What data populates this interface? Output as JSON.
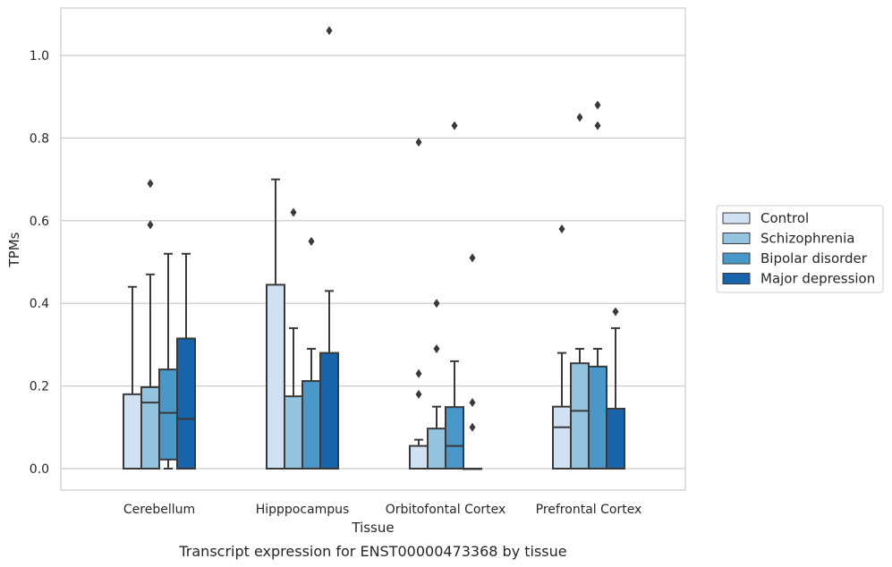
{
  "caption": "Transcript expression for ENST00000473368 by tissue",
  "chart_data": {
    "type": "box",
    "xlabel": "Tissue",
    "ylabel": "TPMs",
    "ylim": [
      -0.05,
      1.12
    ],
    "yticks": [
      0.0,
      0.2,
      0.4,
      0.6,
      0.8,
      1.0
    ],
    "ytick_labels": [
      "0.0",
      "0.2",
      "0.4",
      "0.6",
      "0.8",
      "1.0"
    ],
    "grid": "horizontal",
    "legend_position": "right",
    "categories": [
      "Cerebellum",
      "Hipppocampus",
      "Orbitofontal Cortex",
      "Prefrontal Cortex"
    ],
    "series": [
      {
        "name": "Control",
        "color": "#d0e1f2",
        "boxes": [
          {
            "whislo": 0.0,
            "q1": 0.0,
            "med": 0.0,
            "q3": 0.18,
            "whishi": 0.44,
            "fliers": []
          },
          {
            "whislo": 0.0,
            "q1": 0.0,
            "med": 0.0,
            "q3": 0.445,
            "whishi": 0.7,
            "fliers": []
          },
          {
            "whislo": 0.0,
            "q1": 0.0,
            "med": 0.0,
            "q3": 0.055,
            "whishi": 0.07,
            "fliers": [
              0.18,
              0.23,
              0.79
            ]
          },
          {
            "whislo": 0.0,
            "q1": 0.0,
            "med": 0.1,
            "q3": 0.15,
            "whishi": 0.28,
            "fliers": [
              0.58
            ]
          }
        ]
      },
      {
        "name": "Schizophrenia",
        "color": "#94c4df",
        "boxes": [
          {
            "whislo": 0.0,
            "q1": 0.0,
            "med": 0.16,
            "q3": 0.197,
            "whishi": 0.47,
            "fliers": [
              0.59,
              0.69
            ]
          },
          {
            "whislo": 0.0,
            "q1": 0.0,
            "med": 0.0,
            "q3": 0.175,
            "whishi": 0.34,
            "fliers": [
              0.62
            ]
          },
          {
            "whislo": 0.0,
            "q1": 0.0,
            "med": 0.0,
            "q3": 0.097,
            "whishi": 0.15,
            "fliers": [
              0.29,
              0.4
            ]
          },
          {
            "whislo": 0.0,
            "q1": 0.0,
            "med": 0.14,
            "q3": 0.255,
            "whishi": 0.29,
            "fliers": [
              0.85
            ]
          }
        ]
      },
      {
        "name": "Bipolar disorder",
        "color": "#4a98c9",
        "boxes": [
          {
            "whislo": 0.0,
            "q1": 0.022,
            "med": 0.135,
            "q3": 0.24,
            "whishi": 0.52,
            "fliers": []
          },
          {
            "whislo": 0.0,
            "q1": 0.0,
            "med": 0.0,
            "q3": 0.212,
            "whishi": 0.29,
            "fliers": [
              0.55
            ]
          },
          {
            "whislo": 0.0,
            "q1": 0.0,
            "med": 0.055,
            "q3": 0.149,
            "whishi": 0.26,
            "fliers": [
              0.83
            ]
          },
          {
            "whislo": 0.0,
            "q1": 0.0,
            "med": 0.0,
            "q3": 0.247,
            "whishi": 0.29,
            "fliers": [
              0.83,
              0.88
            ]
          }
        ]
      },
      {
        "name": "Major depression",
        "color": "#1764ab",
        "boxes": [
          {
            "whislo": 0.0,
            "q1": 0.0,
            "med": 0.12,
            "q3": 0.315,
            "whishi": 0.52,
            "fliers": []
          },
          {
            "whislo": 0.0,
            "q1": 0.0,
            "med": 0.0,
            "q3": 0.28,
            "whishi": 0.43,
            "fliers": [
              1.06
            ]
          },
          {
            "whislo": 0.0,
            "q1": 0.0,
            "med": 0.0,
            "q3": 0.0,
            "whishi": 0.0,
            "fliers": [
              0.1,
              0.16,
              0.51
            ]
          },
          {
            "whislo": 0.0,
            "q1": 0.0,
            "med": 0.0,
            "q3": 0.145,
            "whishi": 0.34,
            "fliers": [
              0.38
            ]
          }
        ]
      }
    ]
  }
}
